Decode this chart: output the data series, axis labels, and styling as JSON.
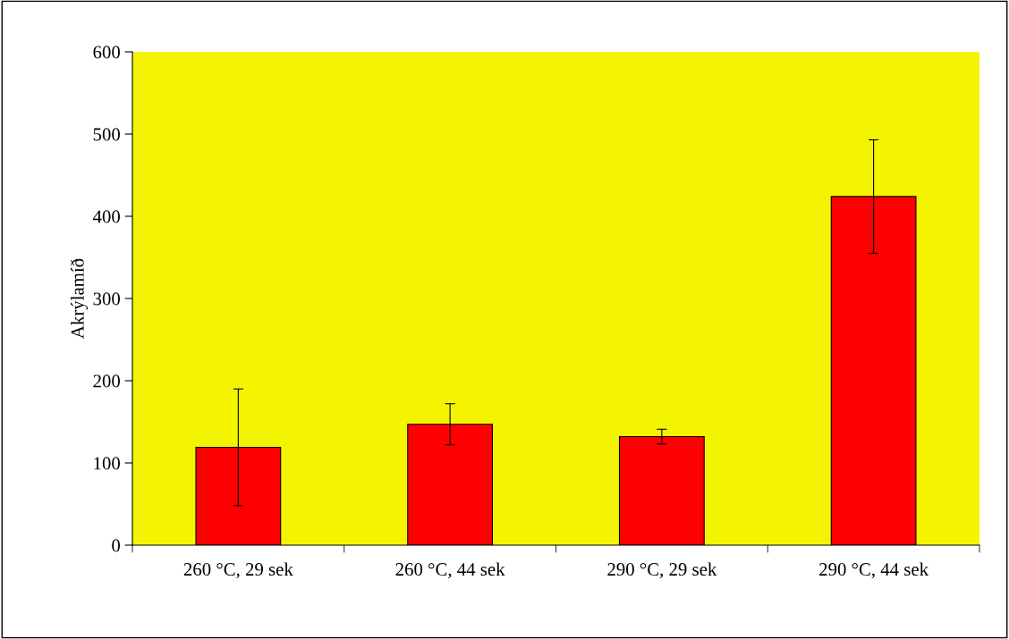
{
  "chart_data": {
    "type": "bar",
    "ylabel": "Akrýlamíð",
    "categories": [
      "260 °C, 29 sek",
      "260 °C, 44 sek",
      "290 °C, 29 sek",
      "290 °C, 44 sek"
    ],
    "values": [
      119,
      147,
      132,
      424
    ],
    "errors": [
      71,
      25,
      9,
      69
    ],
    "color": "#ff0000",
    "ylim": [
      0,
      600
    ],
    "yticks": [
      0,
      100,
      200,
      300,
      400,
      500,
      600
    ],
    "grid": false,
    "legend": false
  }
}
